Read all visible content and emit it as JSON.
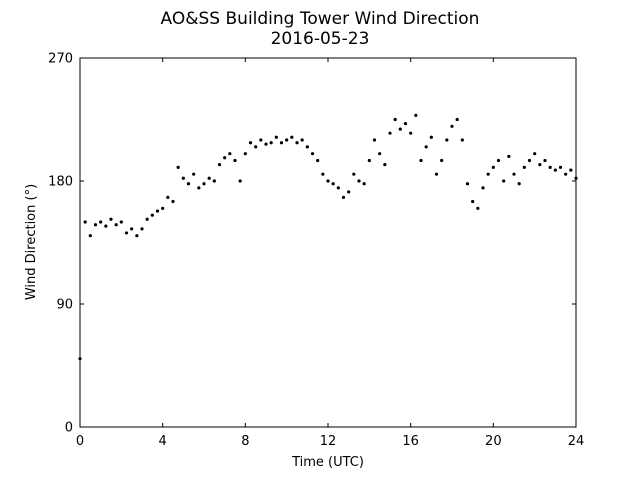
{
  "chart_data": {
    "type": "scatter",
    "title": "AO&SS Building Tower Wind Direction",
    "subtitle": "2016-05-23",
    "x_label": "Time (UTC)",
    "y_label": "Wind Direction (°)",
    "xlim": [
      0,
      24
    ],
    "xticks": [
      0,
      4,
      8,
      12,
      16,
      20,
      24
    ],
    "ylim": [
      0,
      270
    ],
    "yticks": [
      0,
      90,
      180,
      270
    ],
    "grid": false,
    "series": [
      {
        "name": "Wind Direction",
        "color": "#000000",
        "x": [
          0,
          0.25,
          0.5,
          0.75,
          1,
          1.25,
          1.5,
          1.75,
          2,
          2.25,
          2.5,
          2.75,
          3,
          3.25,
          3.5,
          3.75,
          4,
          4.25,
          4.5,
          4.75,
          5,
          5.25,
          5.5,
          5.75,
          6,
          6.25,
          6.5,
          6.75,
          7,
          7.25,
          7.5,
          7.75,
          8,
          8.25,
          8.5,
          8.75,
          9,
          9.25,
          9.5,
          9.75,
          10,
          10.25,
          10.5,
          10.75,
          11,
          11.25,
          11.5,
          11.75,
          12,
          12.25,
          12.5,
          12.75,
          13,
          13.25,
          13.5,
          13.75,
          14,
          14.25,
          14.5,
          14.75,
          15,
          15.25,
          15.5,
          15.75,
          16,
          16.25,
          16.5,
          16.75,
          17,
          17.25,
          17.5,
          17.75,
          18,
          18.25,
          18.5,
          18.75,
          19,
          19.25,
          19.5,
          19.75,
          20,
          20.25,
          20.5,
          20.75,
          21,
          21.25,
          21.5,
          21.75,
          22,
          22.25,
          22.5,
          22.75,
          23,
          23.25,
          23.5,
          23.75,
          24
        ],
        "values": [
          50,
          150,
          140,
          148,
          150,
          147,
          152,
          148,
          150,
          142,
          145,
          140,
          145,
          152,
          155,
          158,
          160,
          168,
          165,
          190,
          182,
          178,
          185,
          175,
          178,
          182,
          180,
          192,
          197,
          200,
          195,
          180,
          200,
          208,
          205,
          210,
          207,
          208,
          212,
          208,
          210,
          212,
          208,
          210,
          205,
          200,
          195,
          185,
          180,
          178,
          175,
          168,
          172,
          185,
          180,
          178,
          195,
          210,
          200,
          192,
          215,
          225,
          218,
          222,
          215,
          228,
          195,
          205,
          212,
          185,
          195,
          210,
          220,
          225,
          210,
          178,
          165,
          160,
          175,
          185,
          190,
          195,
          180,
          198,
          185,
          178,
          190,
          195,
          200,
          192,
          195,
          190,
          188,
          190,
          185,
          188,
          182
        ]
      }
    ]
  }
}
